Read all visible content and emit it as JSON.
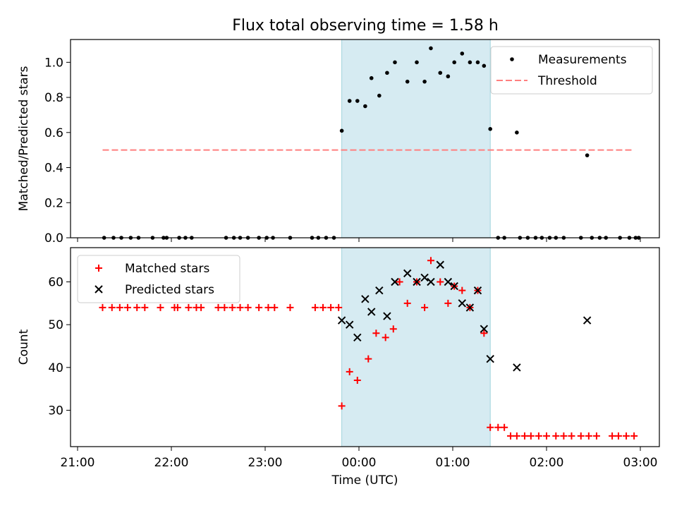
{
  "chart_data": [
    {
      "type": "scatter",
      "title": "Flux total observing time = 1.58 h",
      "ylabel": "Matched/Predicted stars",
      "xlabel": "",
      "xlim": [
        "21:00",
        "03:00"
      ],
      "ylim": [
        0,
        1.13
      ],
      "yticks": [
        "0.0",
        "0.2",
        "0.4",
        "0.6",
        "0.8",
        "1.0"
      ],
      "observing_window": [
        "23:49",
        "01:24"
      ],
      "legend_position": "top-right",
      "series": [
        {
          "name": "Measurements",
          "marker": "dot",
          "color": "#000000",
          "points": [
            [
              "21:17",
              0
            ],
            [
              "21:23",
              0
            ],
            [
              "21:28",
              0
            ],
            [
              "21:34",
              0
            ],
            [
              "21:39",
              0
            ],
            [
              "21:48",
              0
            ],
            [
              "21:55",
              0
            ],
            [
              "21:57",
              0
            ],
            [
              "22:05",
              0
            ],
            [
              "22:09",
              0
            ],
            [
              "22:13",
              0
            ],
            [
              "22:35",
              0
            ],
            [
              "22:40",
              0
            ],
            [
              "22:44",
              0
            ],
            [
              "22:49",
              0
            ],
            [
              "22:56",
              0
            ],
            [
              "23:01",
              0
            ],
            [
              "23:05",
              0
            ],
            [
              "23:16",
              0
            ],
            [
              "23:30",
              0
            ],
            [
              "23:34",
              0
            ],
            [
              "23:39",
              0
            ],
            [
              "23:44",
              0
            ],
            [
              "23:49",
              0.61
            ],
            [
              "23:54",
              0.78
            ],
            [
              "23:59",
              0.78
            ],
            [
              "00:04",
              0.75
            ],
            [
              "00:08",
              0.91
            ],
            [
              "00:13",
              0.81
            ],
            [
              "00:18",
              0.94
            ],
            [
              "00:23",
              1.0
            ],
            [
              "00:31",
              0.89
            ],
            [
              "00:37",
              1.0
            ],
            [
              "00:42",
              0.89
            ],
            [
              "00:46",
              1.08
            ],
            [
              "00:52",
              0.94
            ],
            [
              "00:57",
              0.92
            ],
            [
              "01:01",
              1.0
            ],
            [
              "01:06",
              1.05
            ],
            [
              "01:11",
              1.0
            ],
            [
              "01:16",
              1.0
            ],
            [
              "01:20",
              0.98
            ],
            [
              "01:24",
              0.62
            ],
            [
              "01:29",
              0
            ],
            [
              "01:33",
              0
            ],
            [
              "01:41",
              0.6
            ],
            [
              "01:43",
              0
            ],
            [
              "01:48",
              0
            ],
            [
              "01:53",
              0
            ],
            [
              "01:57",
              0
            ],
            [
              "02:02",
              0
            ],
            [
              "02:06",
              0
            ],
            [
              "02:11",
              0
            ],
            [
              "02:22",
              0
            ],
            [
              "02:29",
              0
            ],
            [
              "02:34",
              0
            ],
            [
              "02:38",
              0
            ],
            [
              "02:47",
              0
            ],
            [
              "02:53",
              0
            ],
            [
              "02:57",
              0
            ],
            [
              "02:59",
              0
            ],
            [
              "02:26",
              0.47
            ]
          ]
        },
        {
          "name": "Threshold",
          "marker": "dashed-line",
          "color": "#ff7f7f",
          "points": [
            [
              "21:16",
              0.5
            ],
            [
              "02:56",
              0.5
            ]
          ]
        }
      ]
    },
    {
      "type": "scatter",
      "title": "",
      "ylabel": "Count",
      "xlabel": "Time (UTC)",
      "xlim": [
        "21:00",
        "03:00"
      ],
      "ylim": [
        21.5,
        68
      ],
      "yticks": [
        "30",
        "40",
        "50",
        "60"
      ],
      "xticks": [
        "21:00",
        "22:00",
        "23:00",
        "00:00",
        "01:00",
        "02:00",
        "03:00"
      ],
      "observing_window": [
        "23:49",
        "01:24"
      ],
      "legend_position": "top-left",
      "series": [
        {
          "name": "Matched stars",
          "marker": "plus",
          "color": "#ff0000",
          "points": [
            [
              "21:16",
              54
            ],
            [
              "21:22",
              54
            ],
            [
              "21:27",
              54
            ],
            [
              "21:32",
              54
            ],
            [
              "21:38",
              54
            ],
            [
              "21:43",
              54
            ],
            [
              "21:53",
              54
            ],
            [
              "22:02",
              54
            ],
            [
              "22:04",
              54
            ],
            [
              "22:11",
              54
            ],
            [
              "22:16",
              54
            ],
            [
              "22:19",
              54
            ],
            [
              "22:30",
              54
            ],
            [
              "22:34",
              54
            ],
            [
              "22:39",
              54
            ],
            [
              "22:44",
              54
            ],
            [
              "22:49",
              54
            ],
            [
              "22:56",
              54
            ],
            [
              "23:02",
              54
            ],
            [
              "23:06",
              54
            ],
            [
              "23:16",
              54
            ],
            [
              "23:32",
              54
            ],
            [
              "23:37",
              54
            ],
            [
              "23:42",
              54
            ],
            [
              "23:47",
              54
            ],
            [
              "23:49",
              31
            ],
            [
              "23:54",
              39
            ],
            [
              "23:59",
              37
            ],
            [
              "00:06",
              42
            ],
            [
              "00:11",
              48
            ],
            [
              "00:17",
              47
            ],
            [
              "00:22",
              49
            ],
            [
              "00:26",
              60
            ],
            [
              "00:31",
              55
            ],
            [
              "00:37",
              60
            ],
            [
              "00:42",
              54
            ],
            [
              "00:46",
              65
            ],
            [
              "00:52",
              60
            ],
            [
              "00:57",
              55
            ],
            [
              "01:01",
              59
            ],
            [
              "01:06",
              58
            ],
            [
              "01:11",
              54
            ],
            [
              "01:16",
              58
            ],
            [
              "01:20",
              48
            ],
            [
              "01:24",
              26
            ],
            [
              "01:29",
              26
            ],
            [
              "01:33",
              26
            ],
            [
              "01:37",
              24
            ],
            [
              "01:41",
              24
            ],
            [
              "01:46",
              24
            ],
            [
              "01:50",
              24
            ],
            [
              "01:55",
              24
            ],
            [
              "02:00",
              24
            ],
            [
              "02:06",
              24
            ],
            [
              "02:11",
              24
            ],
            [
              "02:16",
              24
            ],
            [
              "02:22",
              24
            ],
            [
              "02:27",
              24
            ],
            [
              "02:32",
              24
            ],
            [
              "02:42",
              24
            ],
            [
              "02:46",
              24
            ],
            [
              "02:51",
              24
            ],
            [
              "02:56",
              24
            ]
          ]
        },
        {
          "name": "Predicted stars",
          "marker": "x",
          "color": "#000000",
          "points": [
            [
              "23:49",
              51
            ],
            [
              "23:54",
              50
            ],
            [
              "23:59",
              47
            ],
            [
              "00:04",
              56
            ],
            [
              "00:08",
              53
            ],
            [
              "00:13",
              58
            ],
            [
              "00:18",
              52
            ],
            [
              "00:23",
              60
            ],
            [
              "00:31",
              62
            ],
            [
              "00:37",
              60
            ],
            [
              "00:42",
              61
            ],
            [
              "00:46",
              60
            ],
            [
              "00:52",
              64
            ],
            [
              "00:57",
              60
            ],
            [
              "01:01",
              59
            ],
            [
              "01:06",
              55
            ],
            [
              "01:11",
              54
            ],
            [
              "01:16",
              58
            ],
            [
              "01:20",
              49
            ],
            [
              "01:24",
              42
            ],
            [
              "01:41",
              40
            ],
            [
              "02:26",
              51
            ]
          ]
        }
      ]
    }
  ]
}
